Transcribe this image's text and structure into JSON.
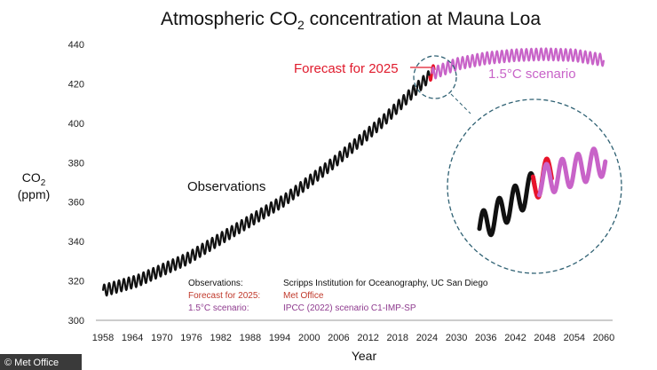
{
  "chart_data": {
    "type": "line",
    "title": "Atmospheric CO",
    "title_subscript": "2",
    "title_suffix": " concentration at Mauna Loa",
    "xlabel": "Year",
    "ylabel_line1": "CO",
    "ylabel_sub": "2",
    "ylabel_line2": "(ppm)",
    "xlim": [
      1958,
      2060
    ],
    "ylim": [
      300,
      440
    ],
    "xticks": [
      1958,
      1964,
      1970,
      1976,
      1982,
      1988,
      1994,
      2000,
      2006,
      2012,
      2018,
      2024,
      2030,
      2036,
      2042,
      2048,
      2054,
      2060
    ],
    "yticks": [
      300,
      320,
      340,
      360,
      380,
      400,
      420,
      440
    ],
    "grid": false,
    "seasonal_amplitude_ppm": 3,
    "series": [
      {
        "name": "Observations",
        "color": "#111111",
        "trend_points": [
          [
            1958,
            315
          ],
          [
            1965,
            320
          ],
          [
            1975,
            331
          ],
          [
            1985,
            346
          ],
          [
            1995,
            361
          ],
          [
            2005,
            380
          ],
          [
            2015,
            401
          ],
          [
            2024.5,
            424
          ]
        ]
      },
      {
        "name": "Forecast for 2025",
        "color": "#e8132a",
        "trend_points": [
          [
            2024.5,
            424
          ],
          [
            2025.5,
            427
          ]
        ]
      },
      {
        "name": "1.5°C scenario",
        "color": "#c863c8",
        "trend_points": [
          [
            2025,
            425
          ],
          [
            2030,
            430
          ],
          [
            2036,
            433
          ],
          [
            2042,
            434.5
          ],
          [
            2048,
            435
          ],
          [
            2054,
            434.5
          ],
          [
            2060,
            432
          ]
        ]
      }
    ],
    "annotations": {
      "observations": "Observations",
      "forecast": "Forecast for 2025",
      "scenario": "1.5°C scenario"
    },
    "sources": [
      {
        "label": "Observations:",
        "source": "Scripps Institution for Oceanography, UC San Diego",
        "color": "#111111"
      },
      {
        "label": "Forecast for 2025:",
        "source": "Met Office",
        "color": "#c0392b"
      },
      {
        "label": "1.5°C scenario:",
        "source": "IPCC (2022) scenario C1-IMP-SP",
        "color": "#8e3a8e"
      }
    ],
    "credit": "© Met Office"
  }
}
